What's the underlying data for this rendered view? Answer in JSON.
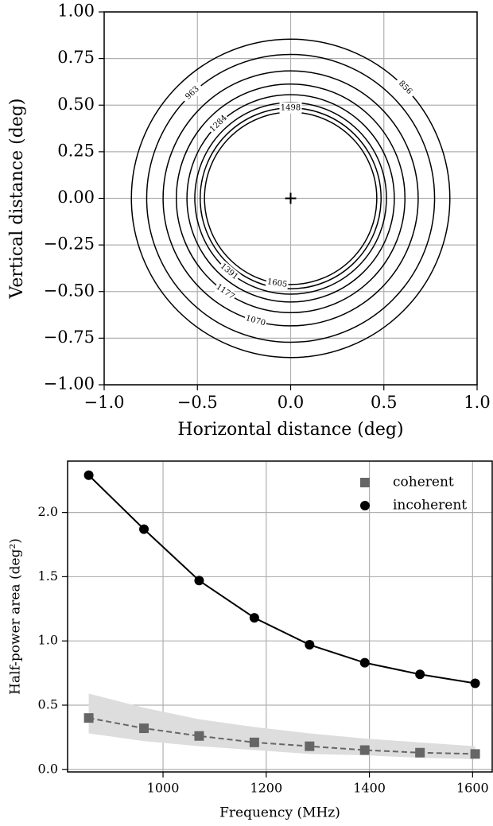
{
  "chart_data": [
    {
      "type": "contour",
      "xlabel": "Horizontal distance (deg)",
      "ylabel": "Vertical distance (deg)",
      "xlim": [
        -1,
        1
      ],
      "ylim": [
        -1,
        1
      ],
      "xticks": [
        {
          "value": -1,
          "label": "−1.0"
        },
        {
          "value": -0.5,
          "label": "−0.5"
        },
        {
          "value": 0,
          "label": "0.0"
        },
        {
          "value": 0.5,
          "label": "0.5"
        },
        {
          "value": 1,
          "label": "1.0"
        }
      ],
      "yticks": [
        {
          "value": -1,
          "label": "−1.00"
        },
        {
          "value": -0.75,
          "label": "−0.75"
        },
        {
          "value": -0.5,
          "label": "−0.50"
        },
        {
          "value": -0.25,
          "label": "−0.25"
        },
        {
          "value": 0,
          "label": "0.00"
        },
        {
          "value": 0.25,
          "label": "0.25"
        },
        {
          "value": 0.5,
          "label": "0.50"
        },
        {
          "value": 0.75,
          "label": "0.75"
        },
        {
          "value": 1,
          "label": "1.00"
        }
      ],
      "grid": true,
      "color": "#000000",
      "levels": [
        856,
        963,
        1070,
        1177,
        1284,
        1391,
        1498,
        1605
      ],
      "radii": [
        0.854,
        0.772,
        0.684,
        0.613,
        0.556,
        0.514,
        0.485,
        0.462
      ],
      "center": [
        0,
        0
      ]
    },
    {
      "type": "line",
      "xlabel": "Frequency (MHz)",
      "ylabel": "Half-power area (deg²)",
      "x": [
        856,
        963,
        1070,
        1177,
        1284,
        1391,
        1498,
        1605
      ],
      "series": [
        {
          "name": "coherent",
          "color": "#666666",
          "marker": "square",
          "linestyle": "dashed",
          "values": [
            0.4,
            0.32,
            0.26,
            0.21,
            0.18,
            0.15,
            0.13,
            0.12
          ],
          "lower": [
            0.28,
            0.22,
            0.18,
            0.15,
            0.12,
            0.11,
            0.09,
            0.08
          ],
          "upper": [
            0.59,
            0.48,
            0.39,
            0.33,
            0.28,
            0.24,
            0.21,
            0.18
          ],
          "band_color": "#dddddd"
        },
        {
          "name": "incoherent",
          "color": "#000000",
          "marker": "circle",
          "linestyle": "solid",
          "values": [
            2.29,
            1.87,
            1.47,
            1.18,
            0.97,
            0.83,
            0.74,
            0.67
          ]
        }
      ],
      "xlim": [
        815,
        1638
      ],
      "ylim": [
        -0.02,
        2.4
      ],
      "xticks": [
        1000,
        1200,
        1400,
        1600
      ],
      "yticks": [
        {
          "value": 0,
          "label": "0.0"
        },
        {
          "value": 0.5,
          "label": "0.5"
        },
        {
          "value": 1,
          "label": "1.0"
        },
        {
          "value": 1.5,
          "label": "1.5"
        },
        {
          "value": 2,
          "label": "2.0"
        }
      ],
      "grid": true,
      "legend": "upper right"
    }
  ]
}
